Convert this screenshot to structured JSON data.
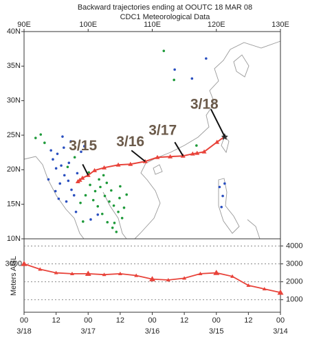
{
  "chart_data": {
    "type": "trajectory",
    "title": "Backward trajectories ending at OOUTC 18 MAR 08",
    "subtitle": "CDC1 Meteorological Data",
    "color": "#e8433a",
    "map": {
      "xlim": [
        90,
        130
      ],
      "ylim": [
        10,
        40
      ],
      "xticks": [
        {
          "value": 90,
          "label": "90E"
        },
        {
          "value": 100,
          "label": "100E"
        },
        {
          "value": 110,
          "label": "110E"
        },
        {
          "value": 120,
          "label": "120E"
        },
        {
          "value": 130,
          "label": "130E"
        }
      ],
      "yticks": [
        {
          "value": 40,
          "label": "40N"
        },
        {
          "value": 35,
          "label": "35N"
        },
        {
          "value": 30,
          "label": "30N"
        },
        {
          "value": 25,
          "label": "25N"
        },
        {
          "value": 20,
          "label": "20N"
        },
        {
          "value": 15,
          "label": "15N"
        },
        {
          "value": 10,
          "label": "10N"
        }
      ],
      "trajectory": {
        "lon": [
          121.3,
          120.1,
          118.1,
          117.0,
          116.3,
          114.8,
          112.8,
          110.8,
          108.9,
          106.6,
          104.7,
          102.5,
          101.0,
          100.0,
          99.1,
          98.7,
          98.4
        ],
        "lat": [
          24.8,
          24.0,
          22.6,
          22.4,
          22.3,
          22.0,
          21.9,
          21.8,
          21.2,
          20.8,
          20.7,
          20.3,
          19.9,
          19.2,
          18.8,
          18.5,
          18.3
        ]
      },
      "hotspots": [
        {
          "color": "#2a4fc0",
          "lon": [
            94.5,
            95.2,
            95.8,
            96.3,
            96.9,
            97.4,
            97.0,
            96.2,
            95.6,
            94.9,
            95.4,
            96.6,
            97.8,
            98.3,
            98.9,
            97.3,
            96.0,
            95.0,
            94.2,
            93.8,
            99.4,
            98.1,
            120.5,
            121.0,
            120.8,
            121.3,
            113.5,
            116.2,
            118.4,
            101.5,
            100.4
          ],
          "lat": [
            21.5,
            22.3,
            20.6,
            19.2,
            18.4,
            17.1,
            21.0,
            23.2,
            18.0,
            16.9,
            15.8,
            15.4,
            16.3,
            19.5,
            22.6,
            24.1,
            24.8,
            20.2,
            22.8,
            18.6,
            23.4,
            13.9,
            17.5,
            16.2,
            14.6,
            18.0,
            34.5,
            33.2,
            36.1,
            13.5,
            12.8
          ]
        },
        {
          "color": "#1e9a3a",
          "lon": [
            100.3,
            101.1,
            101.9,
            102.6,
            103.3,
            104.0,
            104.7,
            105.3,
            101.5,
            102.2,
            103.0,
            103.8,
            104.4,
            100.8,
            101.7,
            102.9,
            103.6,
            104.9,
            105.6,
            100.1,
            99.6,
            98.8,
            97.9,
            92.6,
            91.8,
            93.2,
            113.4,
            111.8,
            116.9,
            104.1,
            102.4,
            105.0,
            106.0,
            99.2,
            96.8
          ],
          "lat": [
            17.8,
            16.9,
            17.5,
            16.2,
            15.4,
            14.8,
            13.9,
            13.0,
            14.7,
            13.6,
            12.4,
            11.6,
            11.0,
            15.6,
            18.6,
            18.1,
            17.0,
            15.9,
            14.5,
            19.6,
            16.3,
            15.2,
            21.8,
            25.1,
            24.6,
            23.9,
            33.0,
            37.2,
            23.5,
            12.3,
            19.2,
            17.6,
            16.4,
            12.5,
            20.4
          ]
        }
      ],
      "annotations": [
        {
          "text": "3/18",
          "lon": 121.3,
          "lat": 24.8
        },
        {
          "text": "3/17",
          "lon": 114.8,
          "lat": 22.0
        },
        {
          "text": "3/16",
          "lon": 108.9,
          "lat": 21.2
        },
        {
          "text": "3/15",
          "lon": 100.0,
          "lat": 19.2
        }
      ]
    },
    "height": {
      "ylabel": "Meters AGL",
      "x": [
        0,
        6,
        12,
        18,
        24,
        30,
        36,
        42,
        48,
        54,
        60,
        66,
        72,
        78,
        84,
        90,
        96
      ],
      "values": [
        3000,
        2700,
        2500,
        2450,
        2450,
        2400,
        2450,
        2350,
        2150,
        2100,
        2200,
        2450,
        2500,
        2300,
        1800,
        1600,
        1400
      ],
      "xlim": [
        0,
        96
      ],
      "xticks": [
        {
          "value": 0,
          "label": "00",
          "date": "3/18"
        },
        {
          "value": 12,
          "label": "12"
        },
        {
          "value": 24,
          "label": "00",
          "date": "3/17"
        },
        {
          "value": 36,
          "label": "12"
        },
        {
          "value": 48,
          "label": "00",
          "date": "3/16"
        },
        {
          "value": 60,
          "label": "12"
        },
        {
          "value": 72,
          "label": "00",
          "date": "3/15"
        },
        {
          "value": 84,
          "label": "12"
        },
        {
          "value": 96,
          "label": "00",
          "date": "3/14"
        }
      ],
      "ylim": [
        300,
        4400
      ],
      "yticks": [
        1000,
        2000,
        3000,
        4000
      ],
      "left_ytick": 3000
    }
  }
}
